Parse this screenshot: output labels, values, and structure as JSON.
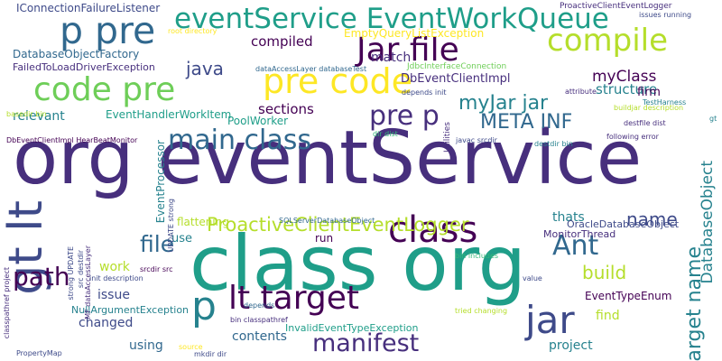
{
  "palette": {
    "dark_purple": "#440154",
    "purple": "#472f7d",
    "indigo": "#3e4a89",
    "blue": "#31688e",
    "teal": "#26828e",
    "sea": "#1f9e89",
    "green": "#35b779",
    "lime": "#6ece58",
    "yellowgreen": "#b5de2b",
    "yellow": "#fde725"
  },
  "words": [
    "org eventService",
    "class org",
    "eventService EventWorkQueue",
    "p pre",
    "code pre",
    "pre code",
    "Jar file",
    "compile",
    "jar",
    "class",
    "main class",
    "gt lt",
    "lt target",
    "pre p",
    "manifest",
    "Ant",
    "p",
    "path",
    "ProactiveClientEventLogger",
    "file",
    "META INF",
    "myJar jar",
    "target name",
    "DatabaseObject",
    "build",
    "name",
    "java",
    "IConnectionFailureListener",
    "compiled",
    "EmptyQueryListException",
    "DatabaseObjectFactory",
    "FailedToLoadDriverException",
    "match",
    "DbEventClientImpl",
    "myClass",
    "structure",
    "firm",
    "sections",
    "relevant",
    "EventHandlerWorkItem",
    "PoolWorker",
    "EventProcessor",
    "thats",
    "flattening",
    "use",
    "run",
    "work",
    "issue",
    "changed",
    "NullArgumentException",
    "contents",
    "using",
    "project",
    "find",
    "EventTypeEnum",
    "InvalidEventTypeException",
    "OracleDatabaseObject",
    "MonitorThread",
    "ProactiveClientEventLogger",
    "issues running",
    "root directory",
    "dataAccessLayer databaseTest",
    "JdbcInterfaceConnection",
    "depends init",
    "attribute",
    "TestHarness",
    "buildjar description",
    "destfile dist",
    "following error",
    "DbEventClientImpl HearBeatMonitor",
    "dir dist",
    "javac srcdir",
    "destdir bin",
    "Utilities",
    "basedir bin",
    "classpathref project",
    "src destdir",
    "strong UPDATE",
    "MF dataAccessLayer",
    "UPDATE strong",
    "SQLServerDatabaseObject",
    "srcdir src",
    "init description",
    "bin includes",
    "value",
    "tried changing",
    "depends",
    "bin classpathref",
    "source",
    "mkdir dir",
    "PropertyMap",
    "gt"
  ]
}
